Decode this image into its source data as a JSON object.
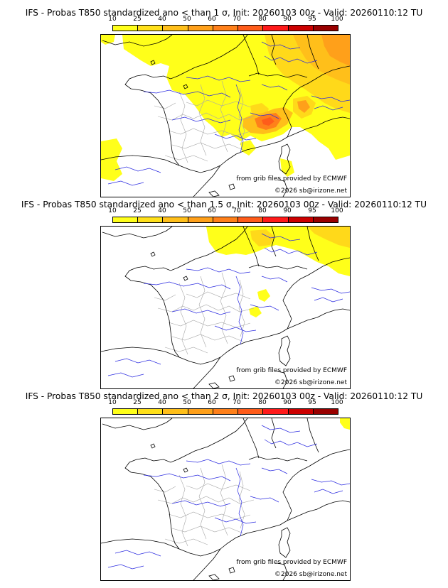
{
  "legend": {
    "ticks": [
      "10",
      "25",
      "40",
      "50",
      "60",
      "70",
      "80",
      "90",
      "95",
      "100"
    ],
    "colors": [
      "#ffff1a",
      "#ffe01a",
      "#ffbf1a",
      "#ffa01a",
      "#ff801a",
      "#ff5c1a",
      "#ff1a1a",
      "#cc0000",
      "#990000",
      "#660000"
    ]
  },
  "colors": {
    "coast": "#000000",
    "river": "#2a2ae0",
    "border": "#aaaaaa"
  },
  "panels": [
    {
      "title": "IFS - Probas T850  standardized ano < than 1 σ, Init: 20260103 00z - Valid: 20260110:12 TU",
      "credit_source": "from grib files provided by ECMWF",
      "credit_copyright": "©2026 sb@irizone.net"
    },
    {
      "title": "IFS - Probas T850  standardized ano < than 1.5 σ, Init: 20260103 00z - Valid: 20260110:12 TU",
      "credit_source": "from grib files provided by ECMWF",
      "credit_copyright": "©2026 sb@irizone.net"
    },
    {
      "title": "IFS - Probas T850  standardized ano < than 2 σ, Init: 20260103 00z - Valid: 20260110:12 TU",
      "credit_source": "from grib files provided by ECMWF",
      "credit_copyright": "©2026 sb@irizone.net"
    }
  ]
}
